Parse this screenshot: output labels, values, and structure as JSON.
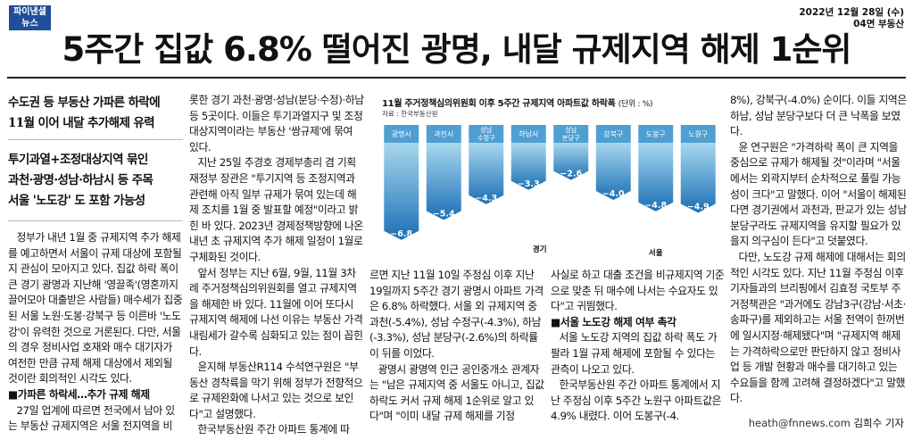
{
  "masthead": {
    "logo_line1": "파이낸셜",
    "logo_line2": "뉴스"
  },
  "dateline": {
    "date": "2022년 12월 28일 (수)",
    "section": "04면 부동산"
  },
  "headline": "5주간 집값 6.8% 떨어진 광명, 내달 규제지역 해제 1순위",
  "decks": {
    "deck1": [
      "수도권 등 부동산 가파른 하락에",
      "11월 이어 내달 추가해제 유력"
    ],
    "deck2": [
      "투기과열+조정대상지역 묶인",
      "과천·광명·성남·하남시 등 주목",
      "서울 '노도강' 도 포함 가능성"
    ]
  },
  "chart_data": {
    "type": "bar",
    "title": "11월 주거정책심의위원회 이후 5주간 규제지역 아파트값 하락폭",
    "unit_note": "(단위 : %)",
    "source": "자료 : 한국부동산원",
    "categories": [
      "광명시",
      "과천시",
      "성남 수정구",
      "하남시",
      "성남 분당구",
      "강북구",
      "도봉구",
      "노원구"
    ],
    "values": [
      -6.8,
      -5.4,
      -4.3,
      -3.3,
      -2.6,
      -4.0,
      -4.8,
      -4.9
    ],
    "value_labels": [
      "−6.8",
      "−5.4",
      "−4.3",
      "−3.3",
      "−2.6",
      "−4.0",
      "−4.8",
      "−4.9"
    ],
    "groups": [
      {
        "name": "경기",
        "count": 5
      },
      {
        "name": "서울",
        "count": 3
      }
    ],
    "ylim": [
      -7,
      0
    ],
    "colors": {
      "bar_top": "#a8d8ee",
      "bar_bottom": "#1a6fb6",
      "label_bg": "#4f9fd3",
      "highlight": "#f7a01d"
    }
  },
  "columns": {
    "col1": [
      {
        "type": "p",
        "text": "정부가 내년 1월 중 규제지역 추가 해제를 예고하면서 서울이 규제 대상에 포함될지 관심이 모아지고 있다. 집값 하락 폭이 큰 경기 광명과 지난해 '영끌족'(영혼까지 끌어모아 대출받은 사람들) 매수세가 집중된 서울 노원·도봉·강북구 등 이른바 '노도강'이 유력한 것으로 거론된다. 다만, 서울의 경우 정비사업 호재와 매수 대기자가 여전한 만큼 규제 해제 대상에서 제외될 것이란 회의적인 시각도 있다."
      },
      {
        "type": "sub",
        "text": "■가파른 하락세…추가 규제 해제"
      },
      {
        "type": "p",
        "text": "27일 업계에 따르면 전국에서 남아 있는 부동산 규제지역은 서울 전지역을 비"
      }
    ],
    "col2": [
      {
        "type": "noindent",
        "text": "롯한 경기 과천·광명·성남(분당·수정)·하남 등 5곳이다. 이들은 투기과열지구 및 조정대상지역이라는 부동산 '쌍규제'에 묶여 있다."
      },
      {
        "type": "p",
        "text": "지난 25일 추경호 경제부총리 겸 기획재정부 장관은 \"투기지역 등 조정지역과 관련해 아직 일부 규제가 묶여 있는데 해제 조치를 1월 중 발표할 예정\"이라고 밝힌 바 있다. 2023년 경제정책방향에 나온 내년 초 규제지역 추가 해제 일정이 1월로 구체화된 것이다."
      },
      {
        "type": "p",
        "text": "앞서 정부는 지난 6월, 9월, 11월 3차례 주거정책심의위원회를 열고 규제지역을 해제한 바 있다. 11월에 이어 또다시 규제지역 해제에 나선 이유는 부동산 가격 내림세가 갈수록 심화되고 있는 점이 꼽힌다."
      },
      {
        "type": "p",
        "text": "윤지해 부동산R114 수석연구원은 \"부동산 경착륙을 막기 위해 정부가 전향적으로 규제완화에 나서고 있는 것으로 보인다\"고 설명했다."
      },
      {
        "type": "p",
        "text": "한국부동산원 주간 아파트 통계에 따"
      }
    ],
    "col3": [
      {
        "type": "noindent",
        "text": "르면 지난 11월 10일 주정심 이후 지난 19일까지 5주간 경기 광명시 아파트 가격은 6.8% 하락했다. 서울 외 규제지역 중 과천(-5.4%), 성남 수정구(-4.3%), 하남(-3.3%), 성남 분당구(-2.6%)의 하락률이 뒤를 이었다."
      },
      {
        "type": "p",
        "text": "광명시 광명역 인근 공인중개소 관계자는 \"남은 규제지역 중 서울도 아니고, 집값 하락도 커서 규제 해제 1순위로 알고 있다\"며 \"이미 내달 규제 해제를 기정"
      }
    ],
    "col4": [
      {
        "type": "noindent",
        "text": "사실로 하고 대출 조건을 비규제지역 기준으로 맞춘 뒤 매수에 나서는 수요자도 있다\"고 귀띔했다."
      },
      {
        "type": "sub",
        "text": "■서울 노도강 해제 여부 촉각"
      },
      {
        "type": "p",
        "text": "서울 노도강 지역의 집값 하락 폭도 가팔라 1월 규제 해제에 포함될 수 있다는 관측이 나오고 있다."
      },
      {
        "type": "p",
        "text": "한국부동산원 주간 아파트 통계에서 지난 주정심 이후 5주간 노원구 아파트값은 4.9% 내렸다. 이어 도봉구(-4."
      }
    ],
    "col5": [
      {
        "type": "noindent",
        "text": "8%), 강북구(-4.0%) 순이다. 이들 지역은 하남, 성남 분당구보다 더 큰 낙폭을 보였다."
      },
      {
        "type": "p",
        "text": "윤 연구원은 \"가격하락 폭이 큰 지역을 중심으로 규제가 해제될 것\"이라며 \"서울에서는 외곽지부터 순차적으로 풀릴 가능성이 크다\"고 말했다. 이어 \"서울이 해제된다면 경기권에서 과천과, 판교가 있는 성남 분당구라도 규제지역을 유지할 필요가 있을지 의구심이 든다\"고 덧붙였다."
      },
      {
        "type": "p",
        "text": "다만, 노도강 규제 해제에 대해서는 회의적인 시각도 있다. 지난 11월 주정심 이후 기자들과의 브리핑에서 김효정 국토부 주거정책관은 \"과거에도 강남3구(강남·서초·송파구)를 제외하고는 서울 전역이 한꺼번에 일시지정·해제됐다\"며 \"규제지역 해제는 가격하락으로만 판단하지 않고 정비사업 등 개발 현황과 매수를 대기하고 있는 수요들을 함께 고려해 결정하겠다\"고 말했다."
      }
    ]
  },
  "byline": {
    "email": "heath@fnnews.com",
    "name": "김희수 기자"
  }
}
